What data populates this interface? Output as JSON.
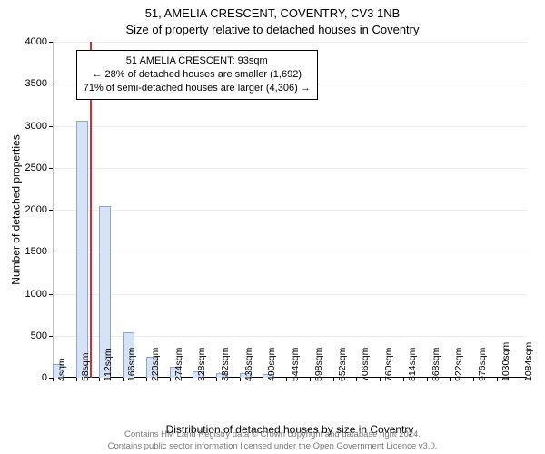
{
  "title_line1": "51, AMELIA CRESCENT, COVENTRY, CV3 1NB",
  "title_line2": "Size of property relative to detached houses in Coventry",
  "y_axis_title": "Number of detached properties",
  "x_axis_title": "Distribution of detached houses by size in Coventry",
  "footer_line1": "Contains HM Land Registry data © Crown copyright and database right 2024.",
  "footer_line2": "Contains public sector information licensed under the Open Government Licence v3.0.",
  "ylim": [
    0,
    4000
  ],
  "ytick_step": 500,
  "yticks": [
    0,
    500,
    1000,
    1500,
    2000,
    2500,
    3000,
    3500,
    4000
  ],
  "xtick_step_sqm": 54,
  "xtick_labels": [
    "4sqm",
    "58sqm",
    "112sqm",
    "166sqm",
    "220sqm",
    "274sqm",
    "328sqm",
    "382sqm",
    "436sqm",
    "490sqm",
    "544sqm",
    "598sqm",
    "652sqm",
    "706sqm",
    "760sqm",
    "814sqm",
    "868sqm",
    "922sqm",
    "976sqm",
    "1030sqm",
    "1084sqm"
  ],
  "bar_fill": "#d6e2f5",
  "bar_stroke": "#8aa5d6",
  "bar_stroke_width": 1,
  "background_color": "#ffffff",
  "grid_color": "#e8e8e8",
  "axis_color": "#000000",
  "text_color": "#000000",
  "marker_color": "#d02f2f",
  "marker_sqm": 93,
  "plot_x_range_sqm": [
    4,
    1100
  ],
  "bars": [
    {
      "x_sqm": 4,
      "w_sqm": 27,
      "value": 160
    },
    {
      "x_sqm": 58,
      "w_sqm": 27,
      "value": 3060
    },
    {
      "x_sqm": 112,
      "w_sqm": 27,
      "value": 2040
    },
    {
      "x_sqm": 166,
      "w_sqm": 27,
      "value": 540
    },
    {
      "x_sqm": 220,
      "w_sqm": 27,
      "value": 250
    },
    {
      "x_sqm": 274,
      "w_sqm": 27,
      "value": 130
    },
    {
      "x_sqm": 328,
      "w_sqm": 27,
      "value": 80
    },
    {
      "x_sqm": 382,
      "w_sqm": 27,
      "value": 55
    },
    {
      "x_sqm": 436,
      "w_sqm": 27,
      "value": 55
    },
    {
      "x_sqm": 490,
      "w_sqm": 27,
      "value": 40
    },
    {
      "x_sqm": 544,
      "w_sqm": 27,
      "value": 0
    },
    {
      "x_sqm": 598,
      "w_sqm": 27,
      "value": 0
    },
    {
      "x_sqm": 652,
      "w_sqm": 27,
      "value": 0
    },
    {
      "x_sqm": 706,
      "w_sqm": 27,
      "value": 0
    },
    {
      "x_sqm": 760,
      "w_sqm": 27,
      "value": 0
    },
    {
      "x_sqm": 814,
      "w_sqm": 27,
      "value": 0
    },
    {
      "x_sqm": 868,
      "w_sqm": 27,
      "value": 0
    },
    {
      "x_sqm": 922,
      "w_sqm": 27,
      "value": 0
    },
    {
      "x_sqm": 976,
      "w_sqm": 27,
      "value": 0
    },
    {
      "x_sqm": 1030,
      "w_sqm": 27,
      "value": 0
    },
    {
      "x_sqm": 1084,
      "w_sqm": 27,
      "value": 0
    }
  ],
  "info_box": {
    "line1": "51 AMELIA CRESCENT: 93sqm",
    "line2": "← 28% of detached houses are smaller (1,692)",
    "line3": "71% of semi-detached houses are larger (4,306) →",
    "left_sqm": 58,
    "top_value": 3900,
    "font_size": 11,
    "border_color": "#000000",
    "background": "#ffffff"
  },
  "title_fontsize": 13,
  "axis_label_fontsize": 12,
  "tick_fontsize": 11,
  "footer_fontsize": 9.5,
  "footer_color": "#777777"
}
